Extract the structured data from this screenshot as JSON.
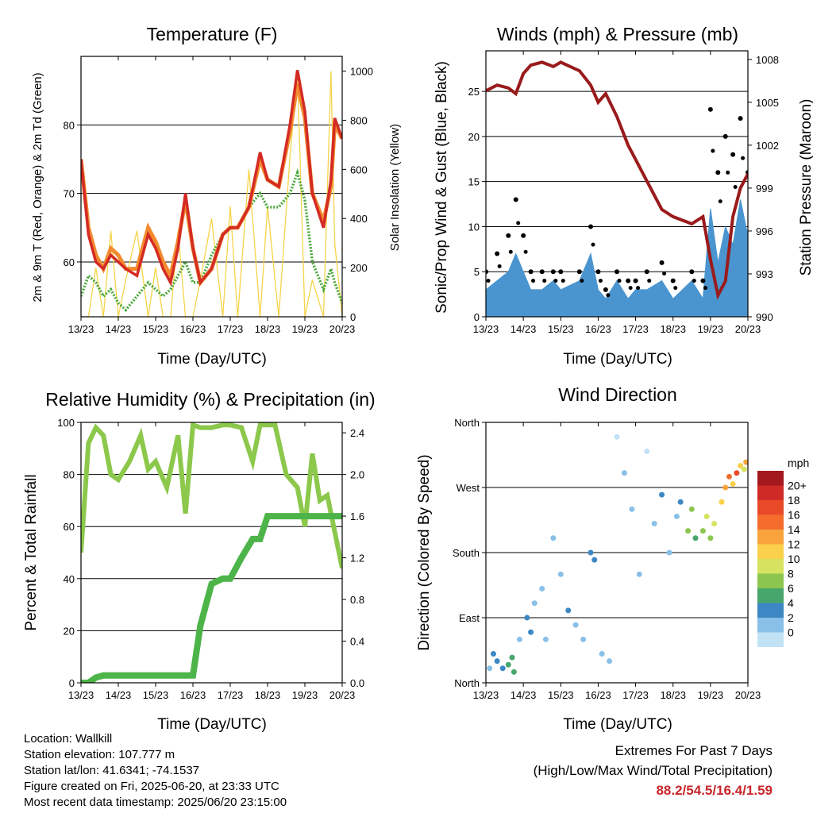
{
  "panels": {
    "temperature": {
      "title": "Temperature (F)",
      "xlabel": "Time (Day/UTC)",
      "ylabel_left": "2m & 9m T (Red, Orange) & 2m Td (Green)",
      "ylabel_right": "Solar Insolation (Yellow)"
    },
    "winds": {
      "title": "Winds (mph) & Pressure (mb)",
      "xlabel": "Time (Day/UTC)",
      "ylabel_left": "Sonic/Prop Wind & Gust (Blue, Black)",
      "ylabel_right": "Station Pressure (Maroon)"
    },
    "humidity": {
      "title": "Relative Humidity (%) & Precipitation (in)",
      "xlabel": "Time (Day/UTC)",
      "ylabel_left": "Percent & Total Rainfall"
    },
    "direction": {
      "title": "Wind Direction",
      "xlabel": "Time (Day/UTC)",
      "ylabel_left": "Direction (Colored By Speed)"
    }
  },
  "legend": {
    "unit": "mph",
    "labels": [
      "20+",
      "18",
      "16",
      "14",
      "12",
      "10",
      "8",
      "6",
      "4",
      "2",
      "0"
    ],
    "colors": [
      "#a3191e",
      "#cf2a25",
      "#e84a28",
      "#f46d2d",
      "#f9a33c",
      "#fbd04a",
      "#d5e360",
      "#8dc64e",
      "#47a66b",
      "#3d88c4",
      "#88c0e8",
      "#c2e3f6"
    ]
  },
  "info": {
    "location": "Location: Wallkill",
    "elevation": "Station elevation: 107.777 m",
    "latlon": "Station lat/lon: 41.6341; -74.1537",
    "created": "Figure created on Fri, 2025-06-20, at 23:33 UTC",
    "recent": "Most recent data timestamp: 2025/06/20 23:15:00"
  },
  "extremes": {
    "line1": "Extremes For Past 7 Days",
    "line2": "(High/Low/Max Wind/Total Precipitation)",
    "values": "88.2/54.5/16.4/1.59"
  },
  "colors": {
    "temp2m": "#d42a24",
    "temp9m": "#f28a2e",
    "dewpoint": "#4aa83a",
    "solar": "#f5d44a",
    "wind": "#4a95cf",
    "gust": "#000000",
    "pressure": "#9a1b1c",
    "rh": "#8cc84b",
    "precip": "#4cb448"
  },
  "chart_data": [
    {
      "type": "line",
      "title": "Temperature (F)",
      "xlabel": "Time (Day/UTC)",
      "ylabel": "2m & 9m T (Red, Orange) & 2m Td (Green)",
      "ylabel_right": "Solar Insolation (Yellow)",
      "x_ticks": [
        "13/23",
        "14/23",
        "15/23",
        "16/23",
        "17/23",
        "18/23",
        "19/23",
        "20/23"
      ],
      "xlim": [
        0,
        7
      ],
      "ylim": [
        52,
        90
      ],
      "y_ticks": [
        60,
        70,
        80
      ],
      "ylim_right": [
        0,
        1060
      ],
      "y_ticks_right": [
        0,
        200,
        400,
        600,
        800,
        1000
      ],
      "x": [
        0,
        0.2,
        0.4,
        0.6,
        0.8,
        1.0,
        1.2,
        1.5,
        1.8,
        2.0,
        2.2,
        2.4,
        2.6,
        2.8,
        3.0,
        3.2,
        3.5,
        3.8,
        4.0,
        4.2,
        4.5,
        4.8,
        5.0,
        5.3,
        5.6,
        5.8,
        6.0,
        6.2,
        6.5,
        6.7,
        6.8,
        7.0
      ],
      "series": [
        {
          "name": "2m T",
          "values": [
            75,
            64,
            60,
            59,
            61,
            60,
            59,
            58,
            64,
            62,
            59,
            57,
            62,
            70,
            62,
            57,
            59,
            64,
            65,
            65,
            68,
            76,
            72,
            71,
            80,
            88,
            82,
            70,
            65,
            72,
            81,
            78
          ]
        },
        {
          "name": "9m T",
          "values": [
            75,
            65,
            61,
            59,
            62,
            61,
            59,
            59,
            65,
            63,
            60,
            58,
            63,
            69,
            62,
            57,
            59,
            64,
            65,
            65,
            68,
            75,
            72,
            71,
            79,
            86,
            81,
            70,
            66,
            71,
            80,
            78
          ]
        },
        {
          "name": "2m Td",
          "values": [
            55,
            58,
            57,
            55,
            56,
            54,
            53,
            55,
            57,
            56,
            55,
            56,
            58,
            60,
            57,
            57,
            61,
            64,
            65,
            65,
            68,
            70,
            68,
            68,
            70,
            73,
            69,
            60,
            56,
            59,
            57,
            54
          ]
        },
        {
          "name": "Solar Insolation",
          "values": [
            0,
            0,
            200,
            0,
            350,
            0,
            150,
            350,
            0,
            200,
            0,
            0,
            350,
            0,
            0,
            150,
            400,
            0,
            450,
            0,
            600,
            0,
            450,
            0,
            650,
            1000,
            0,
            150,
            0,
            1000,
            300,
            0
          ]
        }
      ]
    },
    {
      "type": "line",
      "title": "Winds (mph) & Pressure (mb)",
      "xlabel": "Time (Day/UTC)",
      "ylabel": "Sonic/Prop Wind & Gust (Blue, Black)",
      "ylabel_right": "Station Pressure (Maroon)",
      "x_ticks": [
        "13/23",
        "14/23",
        "15/23",
        "16/23",
        "17/23",
        "18/23",
        "19/23",
        "20/23"
      ],
      "xlim": [
        0,
        7
      ],
      "ylim": [
        0,
        29.5
      ],
      "y_ticks": [
        0,
        5,
        10,
        15,
        20,
        25
      ],
      "ylim_right": [
        990,
        1008.6
      ],
      "y_ticks_right": [
        990,
        993,
        996,
        999,
        1002,
        1005,
        1008
      ],
      "x": [
        0,
        0.3,
        0.6,
        0.8,
        1.0,
        1.2,
        1.5,
        1.8,
        2.0,
        2.5,
        2.8,
        3.0,
        3.2,
        3.5,
        3.8,
        4.0,
        4.3,
        4.7,
        5.0,
        5.5,
        5.8,
        6.0,
        6.2,
        6.4,
        6.6,
        6.8,
        7.0
      ],
      "series": [
        {
          "name": "Wind",
          "values": [
            3,
            4,
            5,
            7,
            5,
            3,
            3,
            4,
            3,
            4,
            7,
            3,
            2,
            4,
            2,
            3,
            3,
            4,
            2,
            4,
            2,
            12,
            6,
            10,
            8,
            13,
            9
          ]
        },
        {
          "name": "Gust",
          "values": [
            5,
            7,
            9,
            13,
            9,
            5,
            5,
            5,
            5,
            5,
            10,
            5,
            3,
            5,
            4,
            4,
            5,
            6,
            4,
            5,
            4,
            23,
            16,
            20,
            18,
            22,
            16
          ]
        },
        {
          "name": "Station Pressure",
          "values": [
            1005.8,
            1006.2,
            1006.0,
            1005.6,
            1007.0,
            1007.6,
            1007.8,
            1007.5,
            1007.8,
            1007.2,
            1006.2,
            1005.0,
            1005.6,
            1004.0,
            1002.0,
            1001.0,
            999.5,
            997.5,
            997.0,
            996.5,
            997.0,
            994.0,
            991.5,
            992.5,
            997.0,
            999.0,
            1000.0
          ]
        }
      ]
    },
    {
      "type": "line",
      "title": "Relative Humidity (%) & Precipitation (in)",
      "xlabel": "Time (Day/UTC)",
      "ylabel": "Percent & Total Rainfall",
      "x_ticks": [
        "13/23",
        "14/23",
        "15/23",
        "16/23",
        "17/23",
        "18/23",
        "19/23",
        "20/23"
      ],
      "xlim": [
        0,
        7
      ],
      "ylim": [
        0,
        100
      ],
      "y_ticks": [
        0,
        20,
        40,
        60,
        80,
        100
      ],
      "ylim_right": [
        0,
        2.5
      ],
      "y_ticks_right": [
        0.0,
        0.4,
        0.8,
        1.2,
        1.6,
        2.0,
        2.4
      ],
      "x": [
        0,
        0.2,
        0.4,
        0.6,
        0.8,
        1.0,
        1.3,
        1.6,
        1.8,
        2.0,
        2.3,
        2.6,
        2.8,
        3.0,
        3.2,
        3.5,
        3.8,
        4.0,
        4.3,
        4.6,
        4.8,
        5.0,
        5.2,
        5.5,
        5.8,
        6.0,
        6.2,
        6.4,
        6.6,
        6.8,
        7.0
      ],
      "series": [
        {
          "name": "Relative Humidity",
          "values": [
            50,
            92,
            98,
            95,
            80,
            78,
            85,
            95,
            82,
            85,
            75,
            95,
            65,
            99,
            98,
            98,
            99,
            99,
            98,
            85,
            99,
            99,
            99,
            80,
            75,
            60,
            88,
            70,
            72,
            58,
            44
          ]
        },
        {
          "name": "Total Precipitation",
          "values": [
            0,
            0,
            0.05,
            0.07,
            0.07,
            0.07,
            0.07,
            0.07,
            0.07,
            0.07,
            0.07,
            0.07,
            0.07,
            0.07,
            0.55,
            0.95,
            1.0,
            1.0,
            1.2,
            1.38,
            1.38,
            1.6,
            1.6,
            1.6,
            1.6,
            1.6,
            1.6,
            1.6,
            1.6,
            1.6,
            1.6
          ]
        }
      ]
    },
    {
      "type": "scatter",
      "title": "Wind Direction",
      "xlabel": "Time (Day/UTC)",
      "ylabel": "Direction (Colored By Speed)",
      "x_ticks": [
        "13/23",
        "14/23",
        "15/23",
        "16/23",
        "17/23",
        "18/23",
        "19/23",
        "20/23"
      ],
      "xlim": [
        0,
        7
      ],
      "ylim": [
        0,
        360
      ],
      "y_ticks": [
        0,
        90,
        180,
        270,
        360
      ],
      "y_tick_labels": [
        "North",
        "East",
        "South",
        "West",
        "North"
      ],
      "points": [
        {
          "x": 0.1,
          "y": 20,
          "speed": 3
        },
        {
          "x": 0.2,
          "y": 40,
          "speed": 4
        },
        {
          "x": 0.3,
          "y": 30,
          "speed": 4
        },
        {
          "x": 0.45,
          "y": 20,
          "speed": 5
        },
        {
          "x": 0.6,
          "y": 25,
          "speed": 6
        },
        {
          "x": 0.7,
          "y": 35,
          "speed": 7
        },
        {
          "x": 0.75,
          "y": 15,
          "speed": 6
        },
        {
          "x": 0.9,
          "y": 60,
          "speed": 3
        },
        {
          "x": 1.1,
          "y": 90,
          "speed": 4
        },
        {
          "x": 1.2,
          "y": 70,
          "speed": 5
        },
        {
          "x": 1.3,
          "y": 110,
          "speed": 2
        },
        {
          "x": 1.5,
          "y": 130,
          "speed": 3
        },
        {
          "x": 1.6,
          "y": 60,
          "speed": 2
        },
        {
          "x": 1.8,
          "y": 200,
          "speed": 2
        },
        {
          "x": 2.0,
          "y": 150,
          "speed": 3
        },
        {
          "x": 2.2,
          "y": 100,
          "speed": 4
        },
        {
          "x": 2.4,
          "y": 80,
          "speed": 3
        },
        {
          "x": 2.6,
          "y": 60,
          "speed": 2
        },
        {
          "x": 2.8,
          "y": 180,
          "speed": 4
        },
        {
          "x": 2.9,
          "y": 170,
          "speed": 5
        },
        {
          "x": 3.1,
          "y": 40,
          "speed": 3
        },
        {
          "x": 3.3,
          "y": 30,
          "speed": 2
        },
        {
          "x": 3.5,
          "y": 340,
          "speed": 1
        },
        {
          "x": 3.7,
          "y": 290,
          "speed": 2
        },
        {
          "x": 3.9,
          "y": 240,
          "speed": 3
        },
        {
          "x": 4.1,
          "y": 150,
          "speed": 2
        },
        {
          "x": 4.3,
          "y": 320,
          "speed": 1
        },
        {
          "x": 4.5,
          "y": 220,
          "speed": 3
        },
        {
          "x": 4.7,
          "y": 260,
          "speed": 4
        },
        {
          "x": 4.9,
          "y": 180,
          "speed": 2
        },
        {
          "x": 5.1,
          "y": 230,
          "speed": 3
        },
        {
          "x": 5.2,
          "y": 250,
          "speed": 5
        },
        {
          "x": 5.4,
          "y": 210,
          "speed": 8
        },
        {
          "x": 5.5,
          "y": 240,
          "speed": 9
        },
        {
          "x": 5.6,
          "y": 200,
          "speed": 7
        },
        {
          "x": 5.8,
          "y": 210,
          "speed": 9
        },
        {
          "x": 5.9,
          "y": 230,
          "speed": 10
        },
        {
          "x": 6.0,
          "y": 200,
          "speed": 8
        },
        {
          "x": 6.1,
          "y": 220,
          "speed": 11
        },
        {
          "x": 6.3,
          "y": 250,
          "speed": 12
        },
        {
          "x": 6.4,
          "y": 270,
          "speed": 14
        },
        {
          "x": 6.5,
          "y": 285,
          "speed": 16
        },
        {
          "x": 6.6,
          "y": 275,
          "speed": 12
        },
        {
          "x": 6.7,
          "y": 290,
          "speed": 18
        },
        {
          "x": 6.8,
          "y": 300,
          "speed": 13
        },
        {
          "x": 6.9,
          "y": 295,
          "speed": 10
        },
        {
          "x": 6.95,
          "y": 305,
          "speed": 15
        }
      ]
    }
  ]
}
